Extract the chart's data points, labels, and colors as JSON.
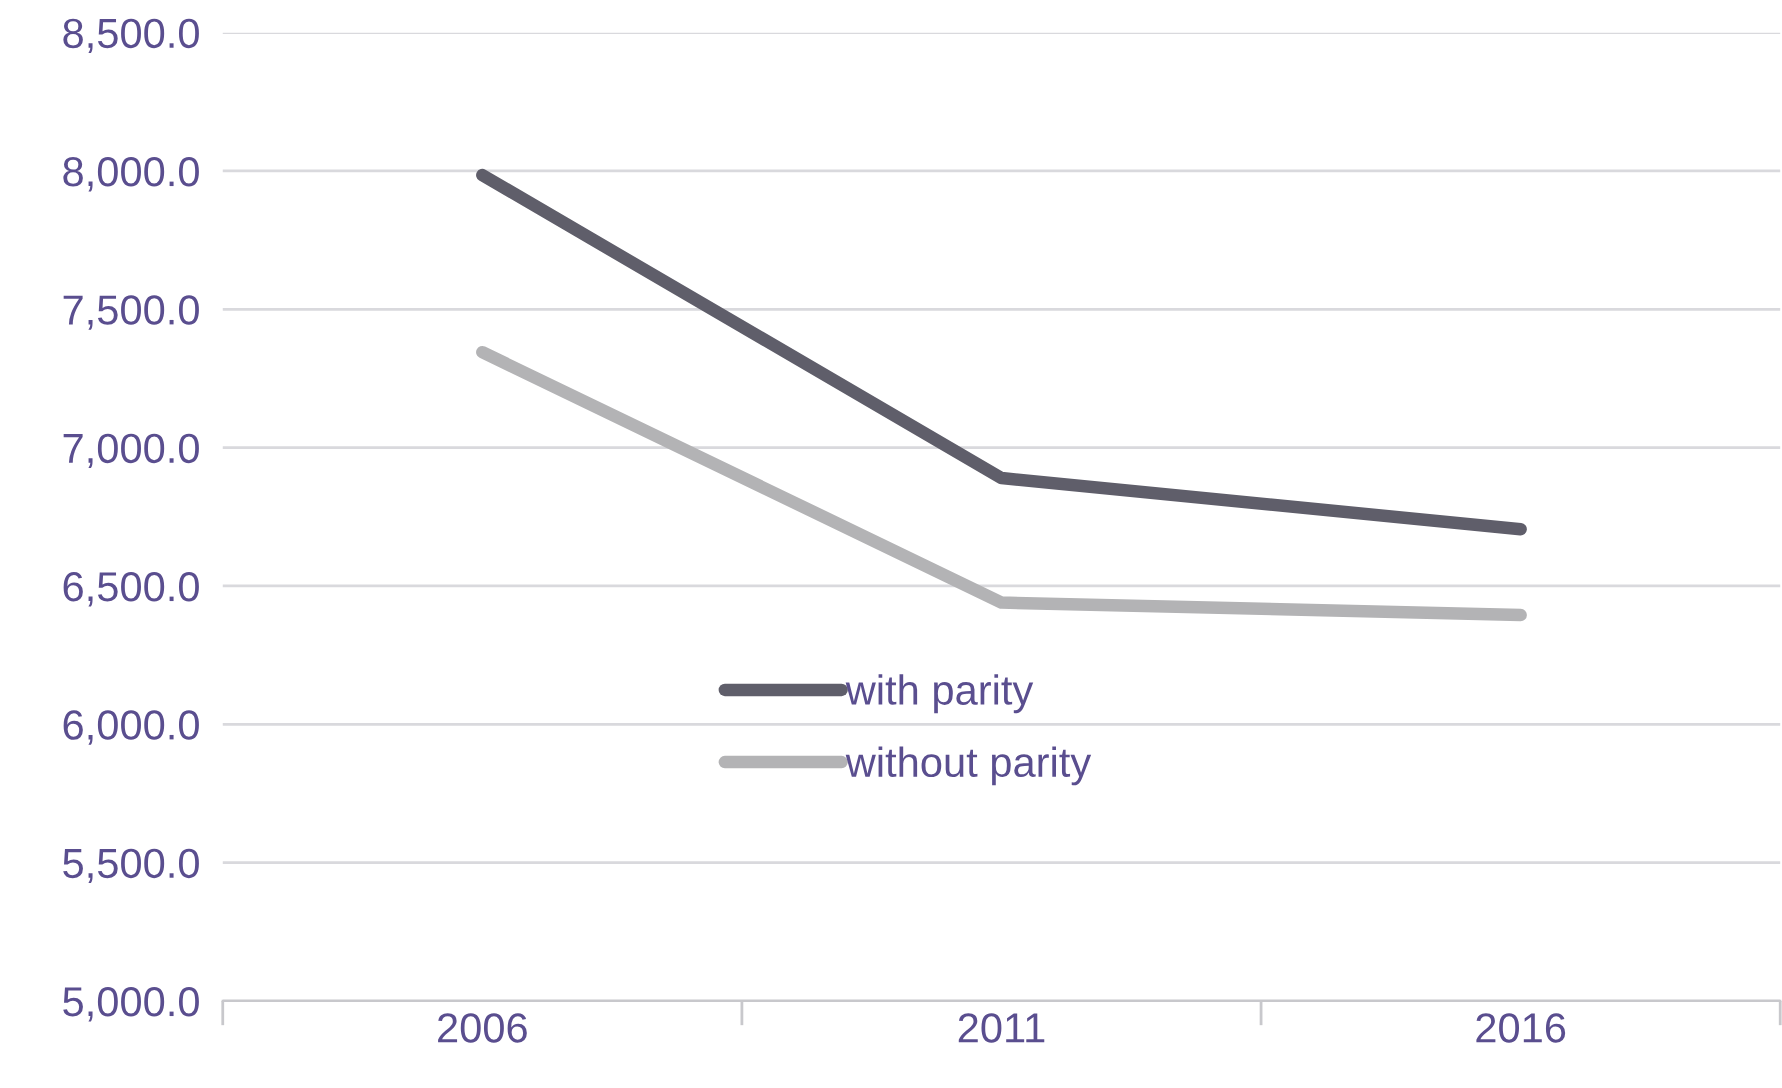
{
  "chart_data": {
    "type": "line",
    "categories": [
      "2006",
      "2011",
      "2016"
    ],
    "series": [
      {
        "name": "with parity",
        "color": "#5f5e6a",
        "values": [
          7985,
          6890,
          6705
        ]
      },
      {
        "name": "without parity",
        "color": "#b3b3b5",
        "values": [
          7345,
          6440,
          6395
        ]
      }
    ],
    "ylim": [
      5000,
      8500
    ],
    "yticks": [
      {
        "value": 5000,
        "label": "5,000.0"
      },
      {
        "value": 5500,
        "label": "5,500.0"
      },
      {
        "value": 6000,
        "label": "6,000.0"
      },
      {
        "value": 6500,
        "label": "6,500.0"
      },
      {
        "value": 7000,
        "label": "7,000.0"
      },
      {
        "value": 7500,
        "label": "7,500.0"
      },
      {
        "value": 8000,
        "label": "8,000.0"
      },
      {
        "value": 8500,
        "label": "8,500.0"
      }
    ],
    "grid": "y",
    "legend": "center",
    "marker": "none",
    "line_style": "solid"
  }
}
